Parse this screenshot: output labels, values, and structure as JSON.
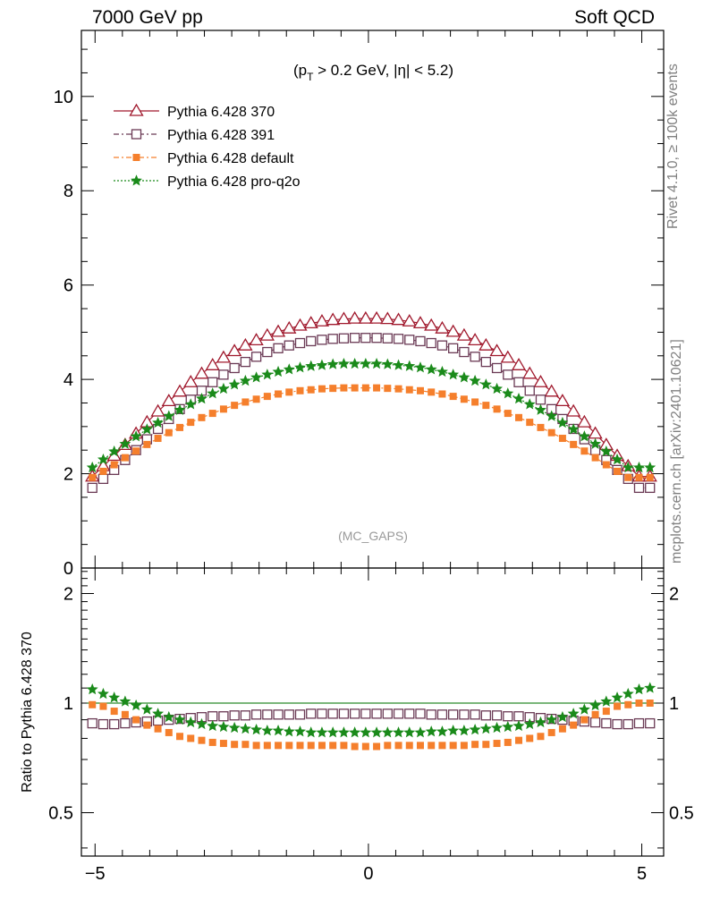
{
  "header": {
    "energy": "7000 GeV pp",
    "process": "Soft QCD"
  },
  "side_labels": {
    "rivet": "Rivet 4.1.0, ≥ 100k events",
    "mcplots": "mcplots.cern.ch [arXiv:2401.10621]"
  },
  "colors": {
    "p370": "#a0182c",
    "p391": "#6b3a55",
    "default": "#f57f2c",
    "proq2o": "#1a8a1a",
    "reference_line": "#2a8a2a"
  },
  "chart_data": [
    {
      "type": "scatter",
      "title": "(p_T > 0.2 GeV, |η| < 5.2)",
      "title_parts": {
        "open": "(p",
        "sub": "T",
        "rest": " > 0.2 GeV, |η| < 5.2)"
      },
      "watermark": "(MC_GAPS)",
      "xlabel": "",
      "ylabel": "",
      "xlim": [
        -5.25,
        5.4
      ],
      "ylim": [
        0,
        11.4
      ],
      "yticks": [
        0,
        2,
        4,
        6,
        8,
        10
      ],
      "ytick_labels": [
        "0",
        "2",
        "4",
        "6",
        "8",
        "10"
      ],
      "legend_position": "top-left",
      "x": [
        -5.05,
        -4.85,
        -4.65,
        -4.45,
        -4.25,
        -4.05,
        -3.85,
        -3.65,
        -3.45,
        -3.25,
        -3.05,
        -2.85,
        -2.65,
        -2.45,
        -2.25,
        -2.05,
        -1.85,
        -1.65,
        -1.45,
        -1.25,
        -1.05,
        -0.85,
        -0.65,
        -0.45,
        -0.25,
        -0.05,
        0.15,
        0.35,
        0.55,
        0.75,
        0.95,
        1.15,
        1.35,
        1.55,
        1.75,
        1.95,
        2.15,
        2.35,
        2.55,
        2.75,
        2.95,
        3.15,
        3.35,
        3.55,
        3.75,
        3.95,
        4.15,
        4.35,
        4.55,
        4.75,
        4.95,
        5.15
      ],
      "series": [
        {
          "name": "Pythia 6.428 370",
          "marker": "open-triangle",
          "line": "solid",
          "values": [
            1.94,
            2.16,
            2.38,
            2.61,
            2.85,
            3.09,
            3.32,
            3.54,
            3.74,
            3.94,
            4.12,
            4.3,
            4.46,
            4.6,
            4.72,
            4.83,
            4.93,
            5.01,
            5.08,
            5.14,
            5.19,
            5.23,
            5.26,
            5.28,
            5.29,
            5.29,
            5.29,
            5.28,
            5.26,
            5.23,
            5.19,
            5.14,
            5.08,
            5.01,
            4.93,
            4.83,
            4.72,
            4.6,
            4.46,
            4.3,
            4.12,
            3.94,
            3.74,
            3.54,
            3.32,
            3.09,
            2.85,
            2.61,
            2.38,
            2.16,
            1.94,
            1.94
          ]
        },
        {
          "name": "Pythia 6.428 391",
          "marker": "open-square",
          "line": "dash-dot",
          "values": [
            1.7,
            1.89,
            2.08,
            2.29,
            2.5,
            2.73,
            2.95,
            3.16,
            3.37,
            3.57,
            3.76,
            3.94,
            4.1,
            4.24,
            4.37,
            4.48,
            4.58,
            4.66,
            4.72,
            4.77,
            4.81,
            4.84,
            4.86,
            4.87,
            4.88,
            4.88,
            4.88,
            4.87,
            4.86,
            4.84,
            4.81,
            4.77,
            4.72,
            4.66,
            4.58,
            4.48,
            4.37,
            4.24,
            4.1,
            3.94,
            3.76,
            3.57,
            3.37,
            3.16,
            2.95,
            2.73,
            2.5,
            2.29,
            2.08,
            1.89,
            1.7,
            1.7
          ]
        },
        {
          "name": "Pythia 6.428 default",
          "marker": "filled-square",
          "line": "dash-dot",
          "values": [
            1.92,
            2.05,
            2.19,
            2.34,
            2.48,
            2.62,
            2.75,
            2.87,
            2.98,
            3.09,
            3.19,
            3.28,
            3.37,
            3.45,
            3.52,
            3.58,
            3.64,
            3.69,
            3.73,
            3.76,
            3.78,
            3.8,
            3.81,
            3.82,
            3.82,
            3.82,
            3.82,
            3.81,
            3.8,
            3.78,
            3.76,
            3.73,
            3.69,
            3.64,
            3.58,
            3.52,
            3.45,
            3.37,
            3.28,
            3.19,
            3.09,
            2.98,
            2.87,
            2.75,
            2.62,
            2.48,
            2.34,
            2.19,
            2.05,
            1.92,
            1.92,
            1.92
          ]
        },
        {
          "name": "Pythia 6.428 pro-q2o",
          "marker": "star",
          "line": "dotted",
          "values": [
            2.13,
            2.3,
            2.47,
            2.63,
            2.79,
            2.94,
            3.08,
            3.22,
            3.35,
            3.47,
            3.59,
            3.7,
            3.8,
            3.89,
            3.97,
            4.04,
            4.1,
            4.16,
            4.21,
            4.25,
            4.28,
            4.3,
            4.32,
            4.33,
            4.33,
            4.33,
            4.33,
            4.32,
            4.3,
            4.28,
            4.25,
            4.21,
            4.16,
            4.1,
            4.04,
            3.97,
            3.89,
            3.8,
            3.7,
            3.59,
            3.47,
            3.35,
            3.22,
            3.08,
            2.94,
            2.79,
            2.63,
            2.47,
            2.3,
            2.13,
            2.13,
            2.13
          ]
        }
      ]
    },
    {
      "type": "scatter",
      "ylabel": "Ratio to Pythia 6.428 370",
      "xlabel": "",
      "xlim": [
        -5.25,
        5.4
      ],
      "ylim": [
        0.38,
        2.35
      ],
      "yscale": "log",
      "yticks": [
        0.5,
        1,
        2
      ],
      "ytick_labels": [
        "0.5",
        "1",
        "2"
      ],
      "xticks": [
        -5,
        0,
        5
      ],
      "xtick_labels": [
        "−5",
        "0",
        "5"
      ],
      "reference": 1.0,
      "x": [
        -5.05,
        -4.85,
        -4.65,
        -4.45,
        -4.25,
        -4.05,
        -3.85,
        -3.65,
        -3.45,
        -3.25,
        -3.05,
        -2.85,
        -2.65,
        -2.45,
        -2.25,
        -2.05,
        -1.85,
        -1.65,
        -1.45,
        -1.25,
        -1.05,
        -0.85,
        -0.65,
        -0.45,
        -0.25,
        -0.05,
        0.15,
        0.35,
        0.55,
        0.75,
        0.95,
        1.15,
        1.35,
        1.55,
        1.75,
        1.95,
        2.15,
        2.35,
        2.55,
        2.75,
        2.95,
        3.15,
        3.35,
        3.55,
        3.75,
        3.95,
        4.15,
        4.35,
        4.55,
        4.75,
        4.95,
        5.15
      ],
      "series": [
        {
          "name": "Pythia 6.428 391",
          "marker": "open-square",
          "values": [
            0.88,
            0.875,
            0.875,
            0.88,
            0.885,
            0.89,
            0.895,
            0.9,
            0.905,
            0.91,
            0.915,
            0.92,
            0.92,
            0.925,
            0.925,
            0.93,
            0.93,
            0.93,
            0.93,
            0.93,
            0.935,
            0.935,
            0.935,
            0.935,
            0.935,
            0.935,
            0.935,
            0.935,
            0.935,
            0.935,
            0.935,
            0.93,
            0.93,
            0.93,
            0.93,
            0.93,
            0.925,
            0.925,
            0.92,
            0.92,
            0.915,
            0.91,
            0.905,
            0.9,
            0.895,
            0.89,
            0.885,
            0.88,
            0.875,
            0.875,
            0.88,
            0.88
          ]
        },
        {
          "name": "Pythia 6.428 default",
          "marker": "filled-square",
          "values": [
            0.99,
            0.98,
            0.95,
            0.93,
            0.9,
            0.87,
            0.85,
            0.83,
            0.81,
            0.8,
            0.79,
            0.78,
            0.775,
            0.77,
            0.77,
            0.765,
            0.765,
            0.765,
            0.765,
            0.765,
            0.765,
            0.765,
            0.765,
            0.765,
            0.76,
            0.76,
            0.76,
            0.765,
            0.765,
            0.765,
            0.765,
            0.765,
            0.765,
            0.765,
            0.765,
            0.77,
            0.77,
            0.775,
            0.78,
            0.79,
            0.8,
            0.81,
            0.83,
            0.85,
            0.87,
            0.9,
            0.93,
            0.95,
            0.98,
            0.99,
            1.0,
            1.0
          ]
        },
        {
          "name": "Pythia 6.428 pro-q2o",
          "marker": "star",
          "values": [
            1.09,
            1.06,
            1.035,
            1.01,
            0.985,
            0.96,
            0.935,
            0.915,
            0.9,
            0.885,
            0.875,
            0.865,
            0.86,
            0.855,
            0.85,
            0.845,
            0.84,
            0.84,
            0.835,
            0.835,
            0.83,
            0.83,
            0.83,
            0.83,
            0.83,
            0.83,
            0.83,
            0.83,
            0.83,
            0.83,
            0.83,
            0.835,
            0.835,
            0.84,
            0.84,
            0.845,
            0.85,
            0.855,
            0.86,
            0.865,
            0.875,
            0.885,
            0.9,
            0.915,
            0.935,
            0.96,
            0.985,
            1.01,
            1.035,
            1.06,
            1.09,
            1.1
          ]
        }
      ]
    }
  ]
}
